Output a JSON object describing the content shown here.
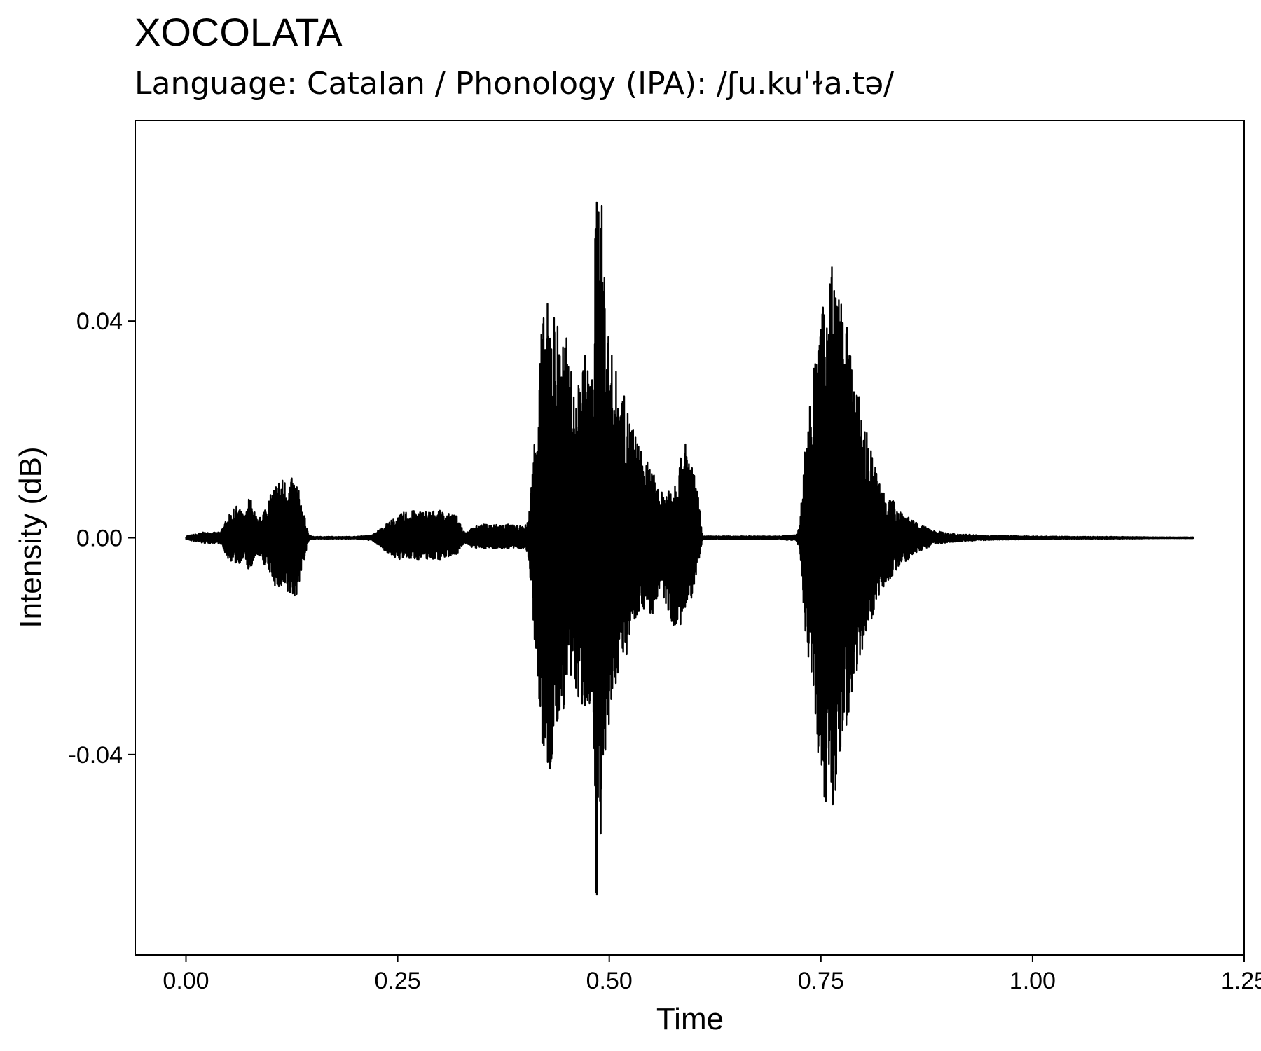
{
  "chart_data": {
    "type": "line",
    "title": "XOCOLATA",
    "subtitle": "Language: Catalan / Phonology (IPA): /ʃu.kuˈɫa.tə/",
    "xlabel": "Time",
    "ylabel": "Intensity (dB)",
    "xlim": [
      -0.06,
      1.25
    ],
    "ylim": [
      -0.077,
      0.077
    ],
    "x_ticks": [
      0.0,
      0.25,
      0.5,
      0.75,
      1.0,
      1.25
    ],
    "x_tick_labels": [
      "0.00",
      "0.25",
      "0.50",
      "0.75",
      "1.00",
      "1.25"
    ],
    "y_ticks": [
      -0.04,
      0.0,
      0.04
    ],
    "y_tick_labels": [
      "-0.04",
      "0.00",
      "0.04"
    ],
    "grid": false,
    "line_color": "#000000",
    "series": [
      {
        "envelope_time": [
          0.0,
          0.02,
          0.04,
          0.05,
          0.06,
          0.07,
          0.075,
          0.085,
          0.1,
          0.105,
          0.11,
          0.12,
          0.13,
          0.14,
          0.145,
          0.15,
          0.2,
          0.22,
          0.24,
          0.25,
          0.26,
          0.28,
          0.3,
          0.32,
          0.33,
          0.34,
          0.35,
          0.36,
          0.38,
          0.4,
          0.405,
          0.41,
          0.42,
          0.43,
          0.44,
          0.45,
          0.46,
          0.47,
          0.48,
          0.485,
          0.49,
          0.5,
          0.51,
          0.52,
          0.53,
          0.54,
          0.55,
          0.56,
          0.57,
          0.58,
          0.59,
          0.6,
          0.605,
          0.61,
          0.7,
          0.72,
          0.725,
          0.73,
          0.74,
          0.75,
          0.76,
          0.765,
          0.77,
          0.78,
          0.79,
          0.8,
          0.82,
          0.84,
          0.86,
          0.88,
          0.9,
          0.95,
          1.0,
          1.05,
          1.1,
          1.15,
          1.19
        ],
        "envelope_max": [
          0.0003,
          0.001,
          0.001,
          0.004,
          0.006,
          0.004,
          0.008,
          0.003,
          0.008,
          0.01,
          0.011,
          0.011,
          0.011,
          0.004,
          0.0005,
          0.0002,
          0.0002,
          0.0005,
          0.003,
          0.004,
          0.005,
          0.005,
          0.005,
          0.004,
          0.001,
          0.002,
          0.0025,
          0.0025,
          0.0025,
          0.002,
          0.004,
          0.015,
          0.04,
          0.045,
          0.04,
          0.037,
          0.025,
          0.035,
          0.03,
          0.07,
          0.065,
          0.036,
          0.03,
          0.025,
          0.02,
          0.015,
          0.013,
          0.008,
          0.01,
          0.012,
          0.018,
          0.012,
          0.008,
          0.0003,
          0.0003,
          0.0005,
          0.002,
          0.015,
          0.03,
          0.04,
          0.052,
          0.052,
          0.046,
          0.04,
          0.03,
          0.022,
          0.01,
          0.006,
          0.003,
          0.0015,
          0.0008,
          0.0004,
          0.0003,
          0.0002,
          0.0002,
          0.0001,
          0.0001
        ],
        "envelope_min": [
          -0.0003,
          -0.001,
          -0.001,
          -0.004,
          -0.005,
          -0.004,
          -0.007,
          -0.003,
          -0.007,
          -0.009,
          -0.01,
          -0.011,
          -0.011,
          -0.004,
          -0.0005,
          -0.0002,
          -0.0002,
          -0.0005,
          -0.003,
          -0.004,
          -0.004,
          -0.004,
          -0.004,
          -0.003,
          -0.001,
          -0.002,
          -0.002,
          -0.002,
          -0.002,
          -0.002,
          -0.004,
          -0.015,
          -0.04,
          -0.045,
          -0.035,
          -0.03,
          -0.028,
          -0.035,
          -0.03,
          -0.07,
          -0.058,
          -0.037,
          -0.025,
          -0.022,
          -0.015,
          -0.013,
          -0.015,
          -0.01,
          -0.014,
          -0.018,
          -0.015,
          -0.01,
          -0.005,
          -0.0003,
          -0.0003,
          -0.0005,
          -0.002,
          -0.015,
          -0.03,
          -0.045,
          -0.052,
          -0.052,
          -0.045,
          -0.035,
          -0.026,
          -0.02,
          -0.01,
          -0.006,
          -0.003,
          -0.0015,
          -0.0008,
          -0.0004,
          -0.0003,
          -0.0002,
          -0.0002,
          -0.0001,
          -0.0001
        ]
      }
    ]
  }
}
